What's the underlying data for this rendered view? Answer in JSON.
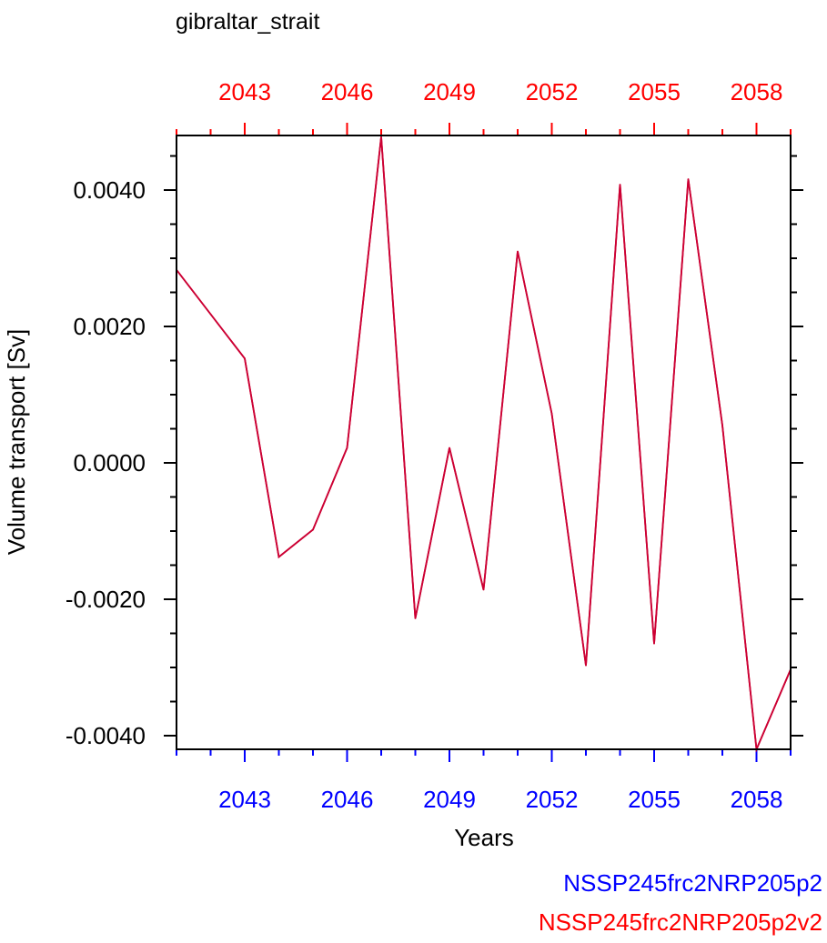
{
  "chart_data": {
    "type": "line",
    "title": "gibraltar_strait",
    "xlabel": "Years",
    "ylabel": "Volume transport [Sv]",
    "x": [
      2041,
      2042,
      2043,
      2044,
      2045,
      2046,
      2047,
      2048,
      2049,
      2050,
      2051,
      2052,
      2053,
      2054,
      2055,
      2056,
      2057,
      2058,
      2059
    ],
    "xlim": [
      2041,
      2059
    ],
    "ylim": [
      -0.0042,
      0.0048
    ],
    "x_ticks": [
      2043,
      2046,
      2049,
      2052,
      2055,
      2058
    ],
    "x_tick_labels": [
      "2043",
      "2046",
      "2049",
      "2052",
      "2055",
      "2058"
    ],
    "y_ticks": [
      -0.004,
      -0.002,
      0.0,
      0.002,
      0.004
    ],
    "y_tick_labels": [
      "-0.0040",
      "-0.0020",
      "0.0000",
      "0.0020",
      "0.0040"
    ],
    "grid": false,
    "series": [
      {
        "name": "NSSP245frc2NRP205p2",
        "color": "#0000ff",
        "values": [
          0.00283,
          0.00218,
          0.00153,
          -0.00138,
          -0.00098,
          0.00022,
          0.00478,
          -0.00228,
          0.00022,
          -0.00186,
          0.0031,
          0.00072,
          -0.00297,
          0.00408,
          -0.00265,
          0.00416,
          0.00055,
          -0.0042,
          -0.00303
        ]
      },
      {
        "name": "NSSP245frc2NRP205p2v2",
        "color": "#ff0000",
        "values": [
          0.00283,
          0.00218,
          0.00153,
          -0.00138,
          -0.00098,
          0.00022,
          0.00478,
          -0.00228,
          0.00022,
          -0.00186,
          0.0031,
          0.00072,
          -0.00297,
          0.00408,
          -0.00265,
          0.00416,
          0.00055,
          -0.0042,
          -0.00303
        ]
      }
    ],
    "bottom_axis_color": "#0000ff",
    "top_axis_color": "#ff0000",
    "line_color": "#cc0033"
  }
}
